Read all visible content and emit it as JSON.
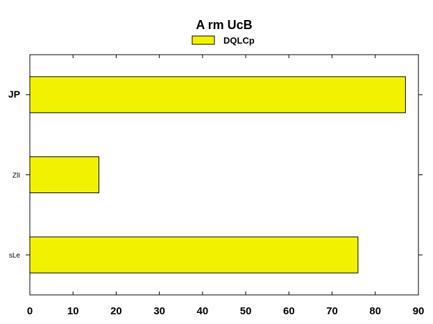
{
  "chart_data": {
    "type": "bar",
    "orientation": "horizontal",
    "title": "A rm  UcB",
    "xlabel": "",
    "ylabel": "",
    "categories": [
      "JP",
      "ZlI",
      "sLe"
    ],
    "series": [
      {
        "name": "DQLCp",
        "values": [
          87,
          16,
          76
        ],
        "color": "#f2f200"
      }
    ],
    "xlim": [
      0,
      90
    ],
    "xticks": [
      0,
      10,
      20,
      30,
      40,
      50,
      60,
      70,
      80,
      90
    ],
    "legend": "top-center",
    "grid": false
  }
}
